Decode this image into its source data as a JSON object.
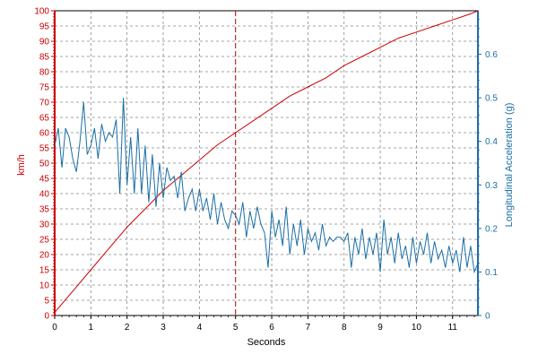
{
  "chart_data": {
    "type": "line",
    "xlabel": "Seconds",
    "xlim": [
      0,
      11.7
    ],
    "x_ticks": [
      0,
      1,
      2,
      3,
      4,
      5,
      6,
      7,
      8,
      9,
      10,
      11
    ],
    "y_left": {
      "label": "km/h",
      "lim": [
        0,
        100
      ],
      "ticks": [
        0,
        5,
        10,
        15,
        20,
        25,
        30,
        35,
        40,
        45,
        50,
        55,
        60,
        65,
        70,
        75,
        80,
        85,
        90,
        95,
        100
      ],
      "color": "#cc0000"
    },
    "y_right": {
      "label": "Longitudinal Acceleration (g)",
      "lim": [
        0,
        0.7
      ],
      "ticks": [
        0,
        0.1,
        0.2,
        0.3,
        0.4,
        0.5,
        0.6
      ],
      "color": "#1a6fa6"
    },
    "marker_line_x": 5.0,
    "grid": true,
    "series": [
      {
        "axis": "left",
        "color": "#cc0000",
        "x": [
          0,
          0.5,
          1,
          1.5,
          2,
          2.5,
          3,
          3.5,
          4,
          4.5,
          5,
          5.5,
          6,
          6.5,
          7,
          7.5,
          8,
          8.5,
          9,
          9.5,
          10,
          10.5,
          11,
          11.5,
          11.7
        ],
        "values": [
          1,
          8,
          15,
          22,
          29,
          35,
          41,
          46,
          51,
          56,
          60,
          64,
          68,
          72,
          75,
          78,
          82,
          85,
          88,
          91,
          93,
          95,
          97,
          99,
          100
        ]
      },
      {
        "axis": "right",
        "color": "#1a6fa6",
        "x": [
          0,
          0.1,
          0.2,
          0.3,
          0.4,
          0.5,
          0.6,
          0.7,
          0.8,
          0.9,
          1.0,
          1.1,
          1.2,
          1.3,
          1.4,
          1.5,
          1.6,
          1.7,
          1.8,
          1.9,
          2.0,
          2.1,
          2.2,
          2.3,
          2.4,
          2.5,
          2.6,
          2.7,
          2.8,
          2.9,
          3.0,
          3.1,
          3.2,
          3.3,
          3.4,
          3.5,
          3.6,
          3.7,
          3.8,
          3.9,
          4.0,
          4.1,
          4.2,
          4.3,
          4.4,
          4.5,
          4.6,
          4.7,
          4.8,
          4.9,
          5.0,
          5.1,
          5.2,
          5.3,
          5.4,
          5.5,
          5.6,
          5.7,
          5.8,
          5.9,
          6.0,
          6.1,
          6.2,
          6.3,
          6.4,
          6.5,
          6.6,
          6.7,
          6.8,
          6.9,
          7.0,
          7.1,
          7.2,
          7.3,
          7.4,
          7.5,
          7.6,
          7.7,
          7.8,
          7.9,
          8.0,
          8.1,
          8.2,
          8.3,
          8.4,
          8.5,
          8.6,
          8.7,
          8.8,
          8.9,
          9.0,
          9.1,
          9.2,
          9.3,
          9.4,
          9.5,
          9.6,
          9.7,
          9.8,
          9.9,
          10.0,
          10.1,
          10.2,
          10.3,
          10.4,
          10.5,
          10.6,
          10.7,
          10.8,
          10.9,
          11.0,
          11.1,
          11.2,
          11.3,
          11.4,
          11.5,
          11.6,
          11.7
        ],
        "values": [
          0.39,
          0.43,
          0.34,
          0.43,
          0.41,
          0.36,
          0.33,
          0.4,
          0.49,
          0.37,
          0.39,
          0.43,
          0.36,
          0.44,
          0.4,
          0.42,
          0.41,
          0.45,
          0.28,
          0.5,
          0.3,
          0.41,
          0.28,
          0.43,
          0.28,
          0.39,
          0.26,
          0.37,
          0.25,
          0.35,
          0.27,
          0.34,
          0.31,
          0.32,
          0.27,
          0.33,
          0.24,
          0.27,
          0.29,
          0.24,
          0.29,
          0.24,
          0.27,
          0.22,
          0.28,
          0.21,
          0.26,
          0.22,
          0.2,
          0.24,
          0.23,
          0.21,
          0.26,
          0.18,
          0.24,
          0.2,
          0.25,
          0.21,
          0.19,
          0.11,
          0.24,
          0.18,
          0.22,
          0.16,
          0.25,
          0.14,
          0.21,
          0.16,
          0.22,
          0.14,
          0.2,
          0.17,
          0.19,
          0.15,
          0.21,
          0.16,
          0.18,
          0.17,
          0.18,
          0.18,
          0.17,
          0.19,
          0.11,
          0.18,
          0.14,
          0.2,
          0.13,
          0.18,
          0.14,
          0.19,
          0.1,
          0.22,
          0.14,
          0.18,
          0.12,
          0.19,
          0.13,
          0.16,
          0.11,
          0.18,
          0.12,
          0.17,
          0.14,
          0.19,
          0.12,
          0.17,
          0.13,
          0.15,
          0.11,
          0.16,
          0.12,
          0.15,
          0.1,
          0.18,
          0.11,
          0.16,
          0.1,
          0.12
        ]
      }
    ]
  }
}
